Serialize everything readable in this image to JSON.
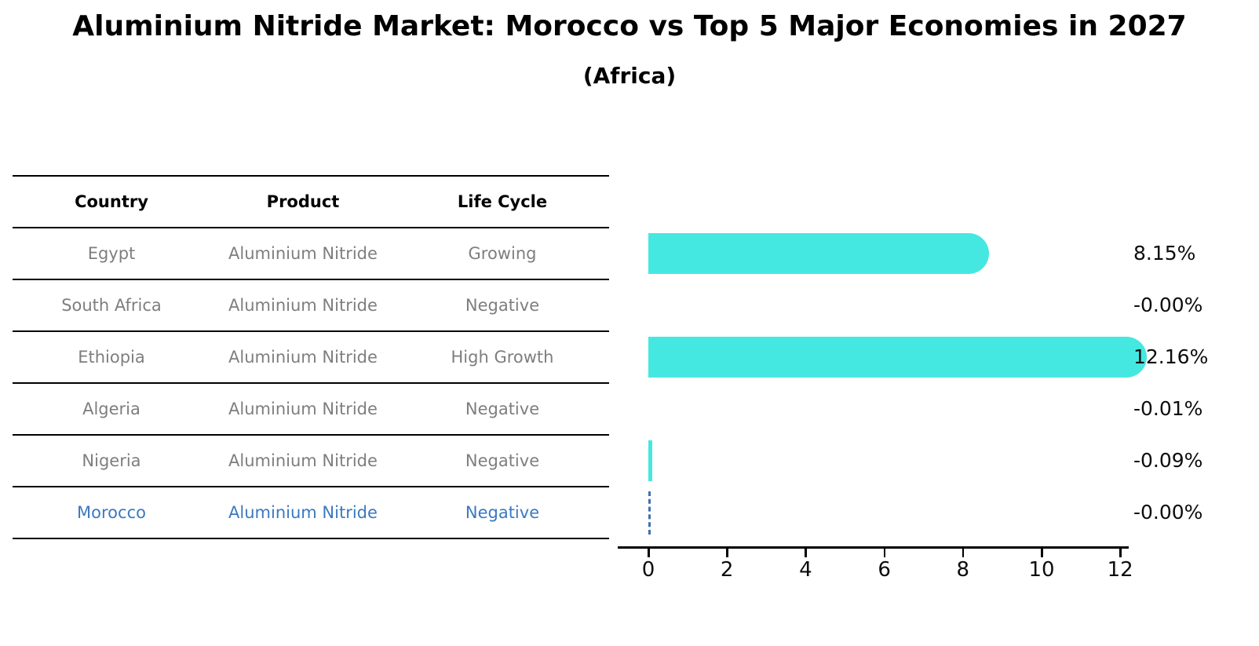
{
  "title": "Aluminium Nitride Market: Morocco vs Top 5 Major Economies in 2027",
  "subtitle": "(Africa)",
  "table": {
    "headers": [
      "Country",
      "Product",
      "Life Cycle"
    ],
    "rows": [
      {
        "country": "Egypt",
        "product": "Aluminium Nitride",
        "life_cycle": "Growing"
      },
      {
        "country": "South Africa",
        "product": "Aluminium Nitride",
        "life_cycle": "Negative"
      },
      {
        "country": "Ethiopia",
        "product": "Aluminium Nitride",
        "life_cycle": "High Growth"
      },
      {
        "country": "Algeria",
        "product": "Aluminium Nitride",
        "life_cycle": "Negative"
      },
      {
        "country": "Nigeria",
        "product": "Aluminium Nitride",
        "life_cycle": "Negative"
      },
      {
        "country": "Morocco",
        "product": "Aluminium Nitride",
        "life_cycle": "Negative"
      }
    ],
    "highlighted_country": "Morocco"
  },
  "chart_data": {
    "type": "bar",
    "orientation": "horizontal",
    "categories": [
      "Egypt",
      "South Africa",
      "Ethiopia",
      "Algeria",
      "Nigeria",
      "Morocco"
    ],
    "values": [
      8.15,
      -0.0,
      12.16,
      -0.01,
      -0.09,
      -0.0
    ],
    "value_labels": [
      "8.15%",
      "-0.00%",
      "12.16%",
      "-0.01%",
      "-0.09%",
      "-0.00%"
    ],
    "x_ticks": [
      0,
      2,
      4,
      6,
      8,
      10,
      12
    ],
    "x_tick_labels": [
      "0",
      "2",
      "4",
      "6",
      "8",
      "10",
      "12"
    ],
    "xlim": [
      -0.8,
      12.2
    ],
    "grid": false,
    "legend": "none",
    "bar_color": "#45e8e0",
    "highlight_index": 5,
    "highlight_style": "dashed-outline",
    "highlight_color": "#3e6fb4",
    "value_label_position": "right-margin"
  },
  "colors": {
    "background": "#ffffff",
    "bar": "#45e8e0",
    "highlight_blue": "#3b79c0",
    "table_text_gray": "#7e7e7e",
    "heading_text": "#000000",
    "axis": "#000000"
  }
}
